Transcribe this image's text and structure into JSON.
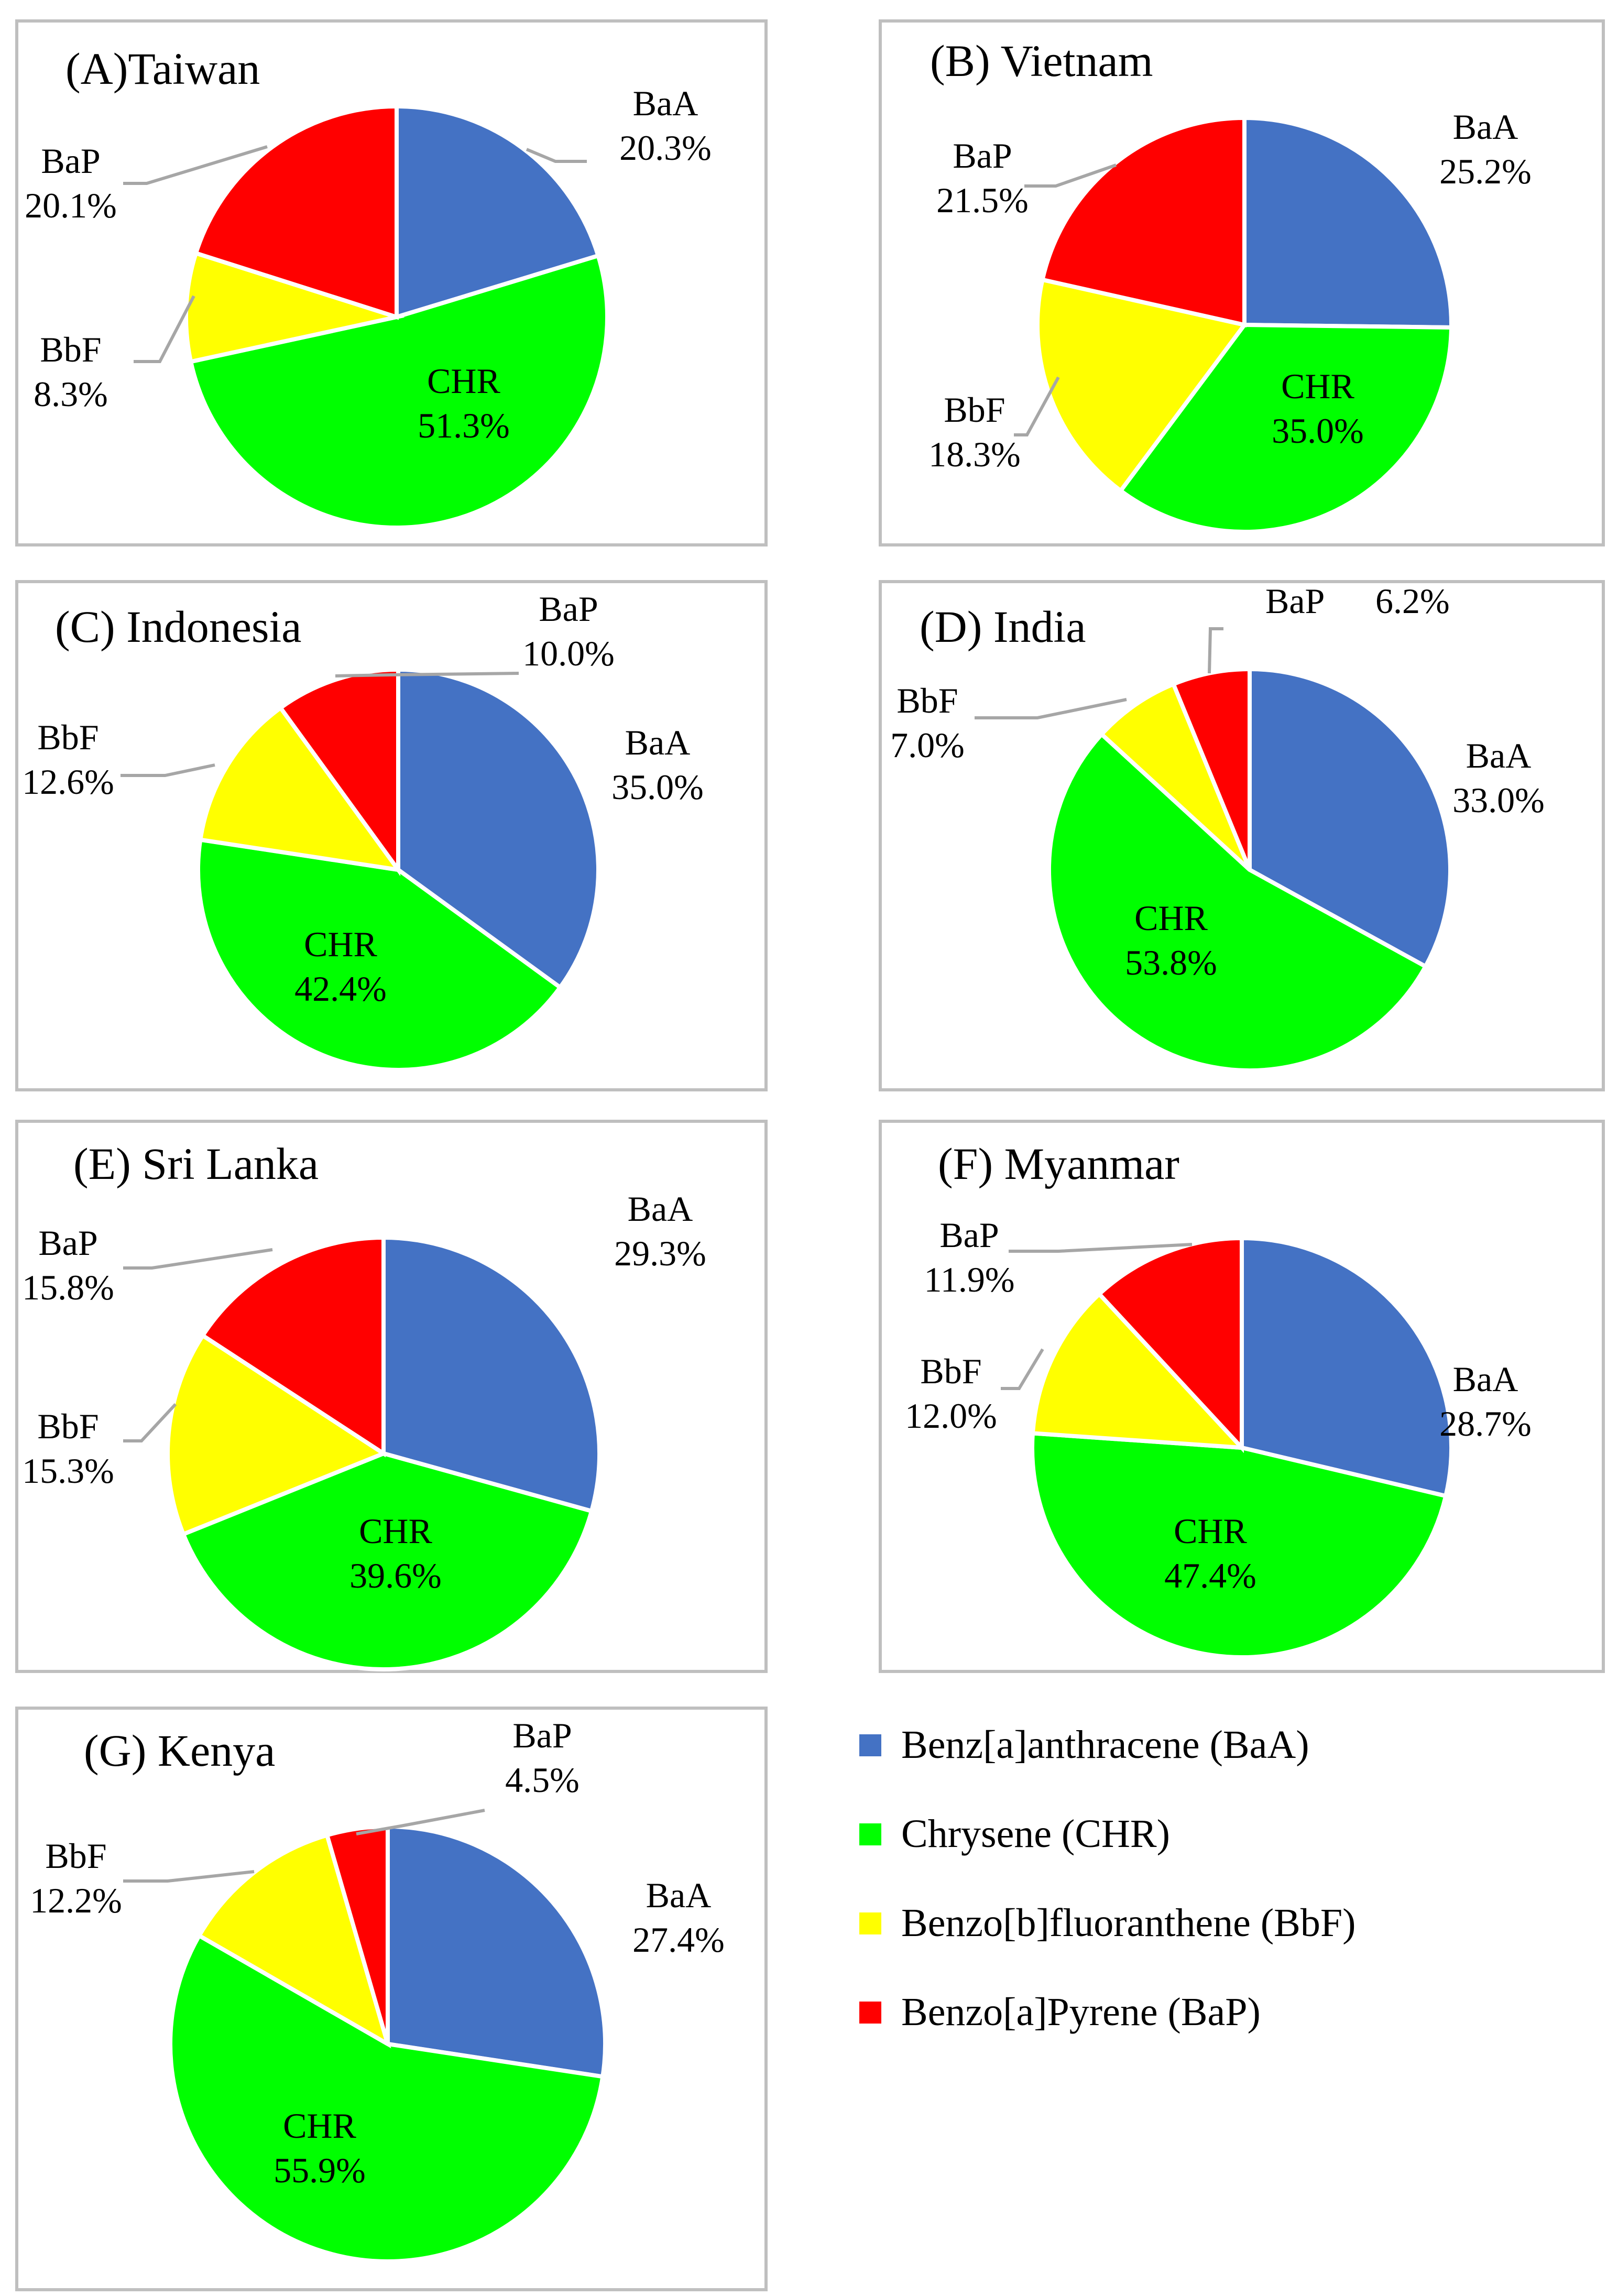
{
  "colors": {
    "BaA": "#4472C4",
    "CHR": "#00FF00",
    "BbF": "#FFFF00",
    "BaP": "#FF0000"
  },
  "legend": [
    {
      "key": "BaA",
      "label": "Benz[a]anthracene (BaA)"
    },
    {
      "key": "CHR",
      "label": "Chrysene (CHR)"
    },
    {
      "key": "BbF",
      "label": "Benzo[b]fluoranthene (BbF)"
    },
    {
      "key": "BaP",
      "label": "Benzo[a]Pyrene (BaP)"
    }
  ],
  "chart_data": [
    {
      "type": "pie",
      "title": "(A)Taiwan",
      "slices": [
        {
          "key": "BaA",
          "label": "BaA",
          "value": 20.3,
          "text": "20.3%"
        },
        {
          "key": "CHR",
          "label": "CHR",
          "value": 51.3,
          "text": "51.3%"
        },
        {
          "key": "BbF",
          "label": "BbF",
          "value": 8.3,
          "text": "8.3%"
        },
        {
          "key": "BaP",
          "label": "BaP",
          "value": 20.1,
          "text": "20.1%"
        }
      ]
    },
    {
      "type": "pie",
      "title": "(B) Vietnam",
      "slices": [
        {
          "key": "BaA",
          "label": "BaA",
          "value": 25.2,
          "text": "25.2%"
        },
        {
          "key": "CHR",
          "label": "CHR",
          "value": 35.0,
          "text": "35.0%"
        },
        {
          "key": "BbF",
          "label": "BbF",
          "value": 18.3,
          "text": "18.3%"
        },
        {
          "key": "BaP",
          "label": "BaP",
          "value": 21.5,
          "text": "21.5%"
        }
      ]
    },
    {
      "type": "pie",
      "title": "(C) Indonesia",
      "slices": [
        {
          "key": "BaA",
          "label": "BaA",
          "value": 35.0,
          "text": "35.0%"
        },
        {
          "key": "CHR",
          "label": "CHR",
          "value": 42.4,
          "text": "42.4%"
        },
        {
          "key": "BbF",
          "label": "BbF",
          "value": 12.6,
          "text": "12.6%"
        },
        {
          "key": "BaP",
          "label": "BaP",
          "value": 10.0,
          "text": "10.0%"
        }
      ]
    },
    {
      "type": "pie",
      "title": "(D) India",
      "slices": [
        {
          "key": "BaA",
          "label": "BaA",
          "value": 33.0,
          "text": "33.0%"
        },
        {
          "key": "CHR",
          "label": "CHR",
          "value": 53.8,
          "text": "53.8%"
        },
        {
          "key": "BbF",
          "label": "BbF",
          "value": 7.0,
          "text": "7.0%"
        },
        {
          "key": "BaP",
          "label": "BaP",
          "value": 6.2,
          "text": "6.2%"
        }
      ]
    },
    {
      "type": "pie",
      "title": "(E) Sri Lanka",
      "slices": [
        {
          "key": "BaA",
          "label": "BaA",
          "value": 29.3,
          "text": "29.3%"
        },
        {
          "key": "CHR",
          "label": "CHR",
          "value": 39.6,
          "text": "39.6%"
        },
        {
          "key": "BbF",
          "label": "BbF",
          "value": 15.3,
          "text": "15.3%"
        },
        {
          "key": "BaP",
          "label": "BaP",
          "value": 15.8,
          "text": "15.8%"
        }
      ]
    },
    {
      "type": "pie",
      "title": "(F) Myanmar",
      "slices": [
        {
          "key": "BaA",
          "label": "BaA",
          "value": 28.7,
          "text": "28.7%"
        },
        {
          "key": "CHR",
          "label": "CHR",
          "value": 47.4,
          "text": "47.4%"
        },
        {
          "key": "BbF",
          "label": "BbF",
          "value": 12.0,
          "text": "12.0%"
        },
        {
          "key": "BaP",
          "label": "BaP",
          "value": 11.9,
          "text": "11.9%"
        }
      ]
    },
    {
      "type": "pie",
      "title": "(G) Kenya",
      "slices": [
        {
          "key": "BaA",
          "label": "BaA",
          "value": 27.4,
          "text": "27.4%"
        },
        {
          "key": "CHR",
          "label": "CHR",
          "value": 55.9,
          "text": "55.9%"
        },
        {
          "key": "BbF",
          "label": "BbF",
          "value": 12.2,
          "text": "12.2%"
        },
        {
          "key": "BaP",
          "label": "BaP",
          "value": 4.5,
          "text": "4.5%"
        }
      ]
    }
  ]
}
